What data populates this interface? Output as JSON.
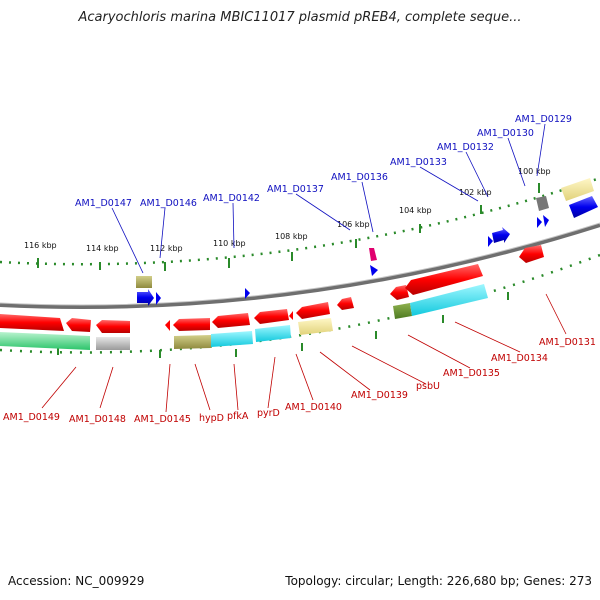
{
  "title": "Acaryochloris marina MBIC11017 plasmid pREB4, complete seque...",
  "footer": {
    "accession": "Accession: NC_009929",
    "summary": "Topology: circular; Length: 226,680 bp; Genes: 273"
  },
  "colors": {
    "forward_label": "#1010c0",
    "reverse_label": "#c00000",
    "backbone": "#7a7a7a",
    "gc_ticks": "#2a8a2a"
  },
  "kbp_ticks": [
    "116 kbp",
    "114 kbp",
    "112 kbp",
    "110 kbp",
    "108 kbp",
    "106 kbp",
    "104 kbp",
    "102 kbp",
    "100 kbp"
  ],
  "forward_labels": [
    "AM1_D0147",
    "AM1_D0146",
    "AM1_D0142",
    "AM1_D0137",
    "AM1_D0136",
    "AM1_D0133",
    "AM1_D0132",
    "AM1_D0130",
    "AM1_D0129"
  ],
  "reverse_labels": [
    "AM1_D0149",
    "AM1_D0148",
    "AM1_D0145",
    "hypD",
    "pfkA",
    "pyrD",
    "AM1_D0140",
    "AM1_D0139",
    "psbU",
    "AM1_D0135",
    "AM1_D0134",
    "AM1_D0131"
  ]
}
